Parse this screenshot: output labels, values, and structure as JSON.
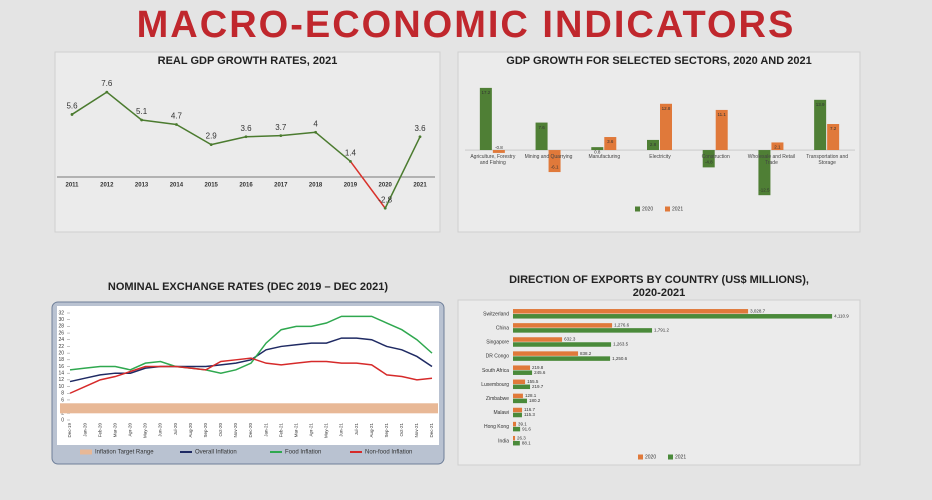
{
  "title": "MACRO-ECONOMIC INDICATORS",
  "chart_data": [
    {
      "type": "line",
      "title": "REAL GDP GROWTH RATES, 2021",
      "categories": [
        "2011",
        "2012",
        "2013",
        "2014",
        "2015",
        "2016",
        "2017",
        "2018",
        "2019",
        "2020",
        "2021"
      ],
      "series": [
        {
          "color": "#4b7b2f",
          "negative_color": "#d9322b",
          "values": [
            5.6,
            7.6,
            5.1,
            4.7,
            2.9,
            3.6,
            3.7,
            4,
            1.4,
            -2.8,
            3.6
          ]
        }
      ],
      "ylim": [
        -4.3,
        9.4
      ],
      "data_labels": true
    },
    {
      "type": "bar",
      "title": "GDP GROWTH FOR SELECTED SECTORS, 2020 AND 2021",
      "categories": [
        "Agriculture, Forestry and Fishing",
        "Mining and Quarrying",
        "Manufacturing",
        "Electricity",
        "Construction",
        "Wholesale and Retail Trade",
        "Transportation and Storage"
      ],
      "series": [
        {
          "name": "2020",
          "color": "#4f7f35",
          "values": [
            17.2,
            7.6,
            0.8,
            2.8,
            -4.8,
            -12.5,
            13.9
          ]
        },
        {
          "name": "2021",
          "color": "#e0793a",
          "values": [
            -0.8,
            -6.1,
            3.6,
            12.8,
            11.1,
            2.1,
            7.2
          ]
        }
      ],
      "ylim": [
        -13,
        18
      ],
      "data_labels": true
    },
    {
      "type": "line",
      "title": "NOMINAL EXCHANGE RATES (DEC 2019 – DEC 2021)",
      "categories": [
        "Dec-19",
        "Jan-20",
        "Feb-20",
        "Mar-20",
        "Apr-20",
        "May-20",
        "Jun-20",
        "Jul-20",
        "Aug-20",
        "Sep-20",
        "Oct-20",
        "Nov-20",
        "Dec-20",
        "Jan-21",
        "Feb-21",
        "Mar-21",
        "Apr-21",
        "May-21",
        "Jun-21",
        "Jul-21",
        "Aug-21",
        "Sep-21",
        "Oct-21",
        "Nov-21",
        "Dec-21"
      ],
      "series": [
        {
          "name": "Inflation Target Range",
          "color": "#e8b896",
          "range": [
            2,
            5
          ]
        },
        {
          "name": "Overall Inflation",
          "color": "#1f2a63",
          "values": [
            11.5,
            12.5,
            13.5,
            14,
            14,
            15.5,
            16,
            16,
            16,
            16,
            16.5,
            17,
            18,
            21,
            22,
            22.5,
            23,
            23,
            24.5,
            24.5,
            24,
            22,
            21,
            19,
            16
          ]
        },
        {
          "name": "Food Inflation",
          "color": "#2fa84f",
          "values": [
            15,
            15.5,
            16,
            16,
            15,
            17,
            17.5,
            16,
            15.5,
            15,
            14,
            15,
            17,
            23,
            27,
            28,
            28,
            29,
            31,
            31,
            31,
            29,
            27,
            24,
            20
          ]
        },
        {
          "name": "Non-food Inflation",
          "color": "#d62a2a",
          "values": [
            8,
            10,
            12,
            13,
            14.5,
            16,
            16,
            16,
            15.5,
            15,
            17.5,
            18,
            18.5,
            17,
            16.5,
            17,
            17.5,
            17.5,
            17,
            17,
            16.5,
            13.5,
            13,
            12,
            12.5
          ]
        }
      ],
      "ylim": [
        0,
        32
      ],
      "yticks": [
        0,
        2,
        4,
        6,
        8,
        10,
        12,
        14,
        16,
        18,
        20,
        22,
        24,
        26,
        28,
        30,
        32
      ]
    },
    {
      "type": "hbar",
      "title": "DIRECTION OF EXPORTS BY COUNTRY (US$ MILLIONS), 2020-2021",
      "categories": [
        "Switzerland",
        "China",
        "Singapore",
        "DR Congo",
        "South Africa",
        "Luxembourg",
        "Zimbabwe",
        "Malawi",
        "Hong Kong",
        "India"
      ],
      "series": [
        {
          "name": "2020",
          "color": "#e0793a",
          "values": [
            3028.7,
            1276.6,
            632.3,
            838.2,
            219.8,
            155.5,
            128.1,
            116.7,
            39.1,
            26.3
          ],
          "value_labels": [
            "3,028.7",
            "1,276.6",
            "632.3",
            "838.2",
            "219.8",
            "155.5",
            "128.1",
            "116.7",
            "39.1",
            "26.3"
          ]
        },
        {
          "name": "2021",
          "color": "#4a8a3a",
          "values": [
            4110.9,
            1791.2,
            1263.5,
            1250.6,
            245.6,
            219.7,
            180.2,
            115.3,
            91.6,
            88.1
          ],
          "value_labels": [
            "4,110.9",
            "1,791.2",
            "1,263.5",
            "1,250.6",
            "245.6",
            "219.7",
            "180.2",
            "115.3",
            "91.6",
            "88.1"
          ]
        }
      ],
      "xlim": [
        0,
        4200
      ]
    }
  ]
}
